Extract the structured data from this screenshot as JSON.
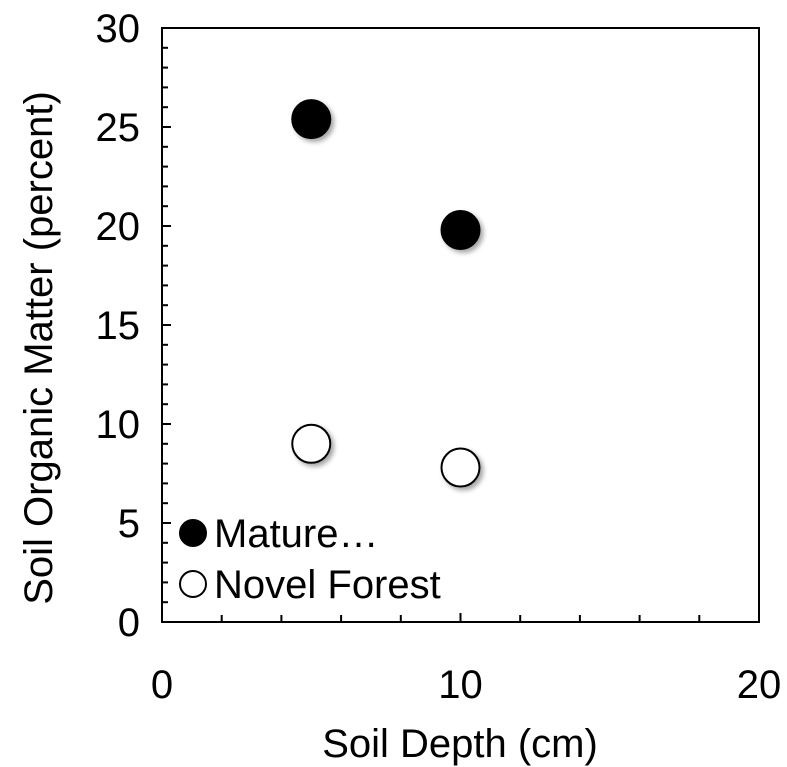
{
  "chart_data": {
    "type": "scatter",
    "title": "",
    "xlabel": "Soil Depth (cm)",
    "ylabel": "Soil Organic Matter (percent)",
    "xlim": [
      0,
      20
    ],
    "ylim": [
      0,
      30
    ],
    "xticks": [
      0,
      10,
      20
    ],
    "yticks": [
      0,
      5,
      10,
      15,
      20,
      25,
      30
    ],
    "x_minor_step": 2,
    "y_minor_step": 1,
    "grid": false,
    "legend_position": "bottom-left",
    "series": [
      {
        "name": "Mature…",
        "marker": "filled-circle",
        "color": "#000000",
        "x": [
          5,
          10
        ],
        "y": [
          25.4,
          19.8
        ]
      },
      {
        "name": "Novel Forest",
        "marker": "open-circle",
        "color": "#ffffff",
        "x": [
          5,
          10
        ],
        "y": [
          9.0,
          7.8
        ]
      }
    ]
  }
}
